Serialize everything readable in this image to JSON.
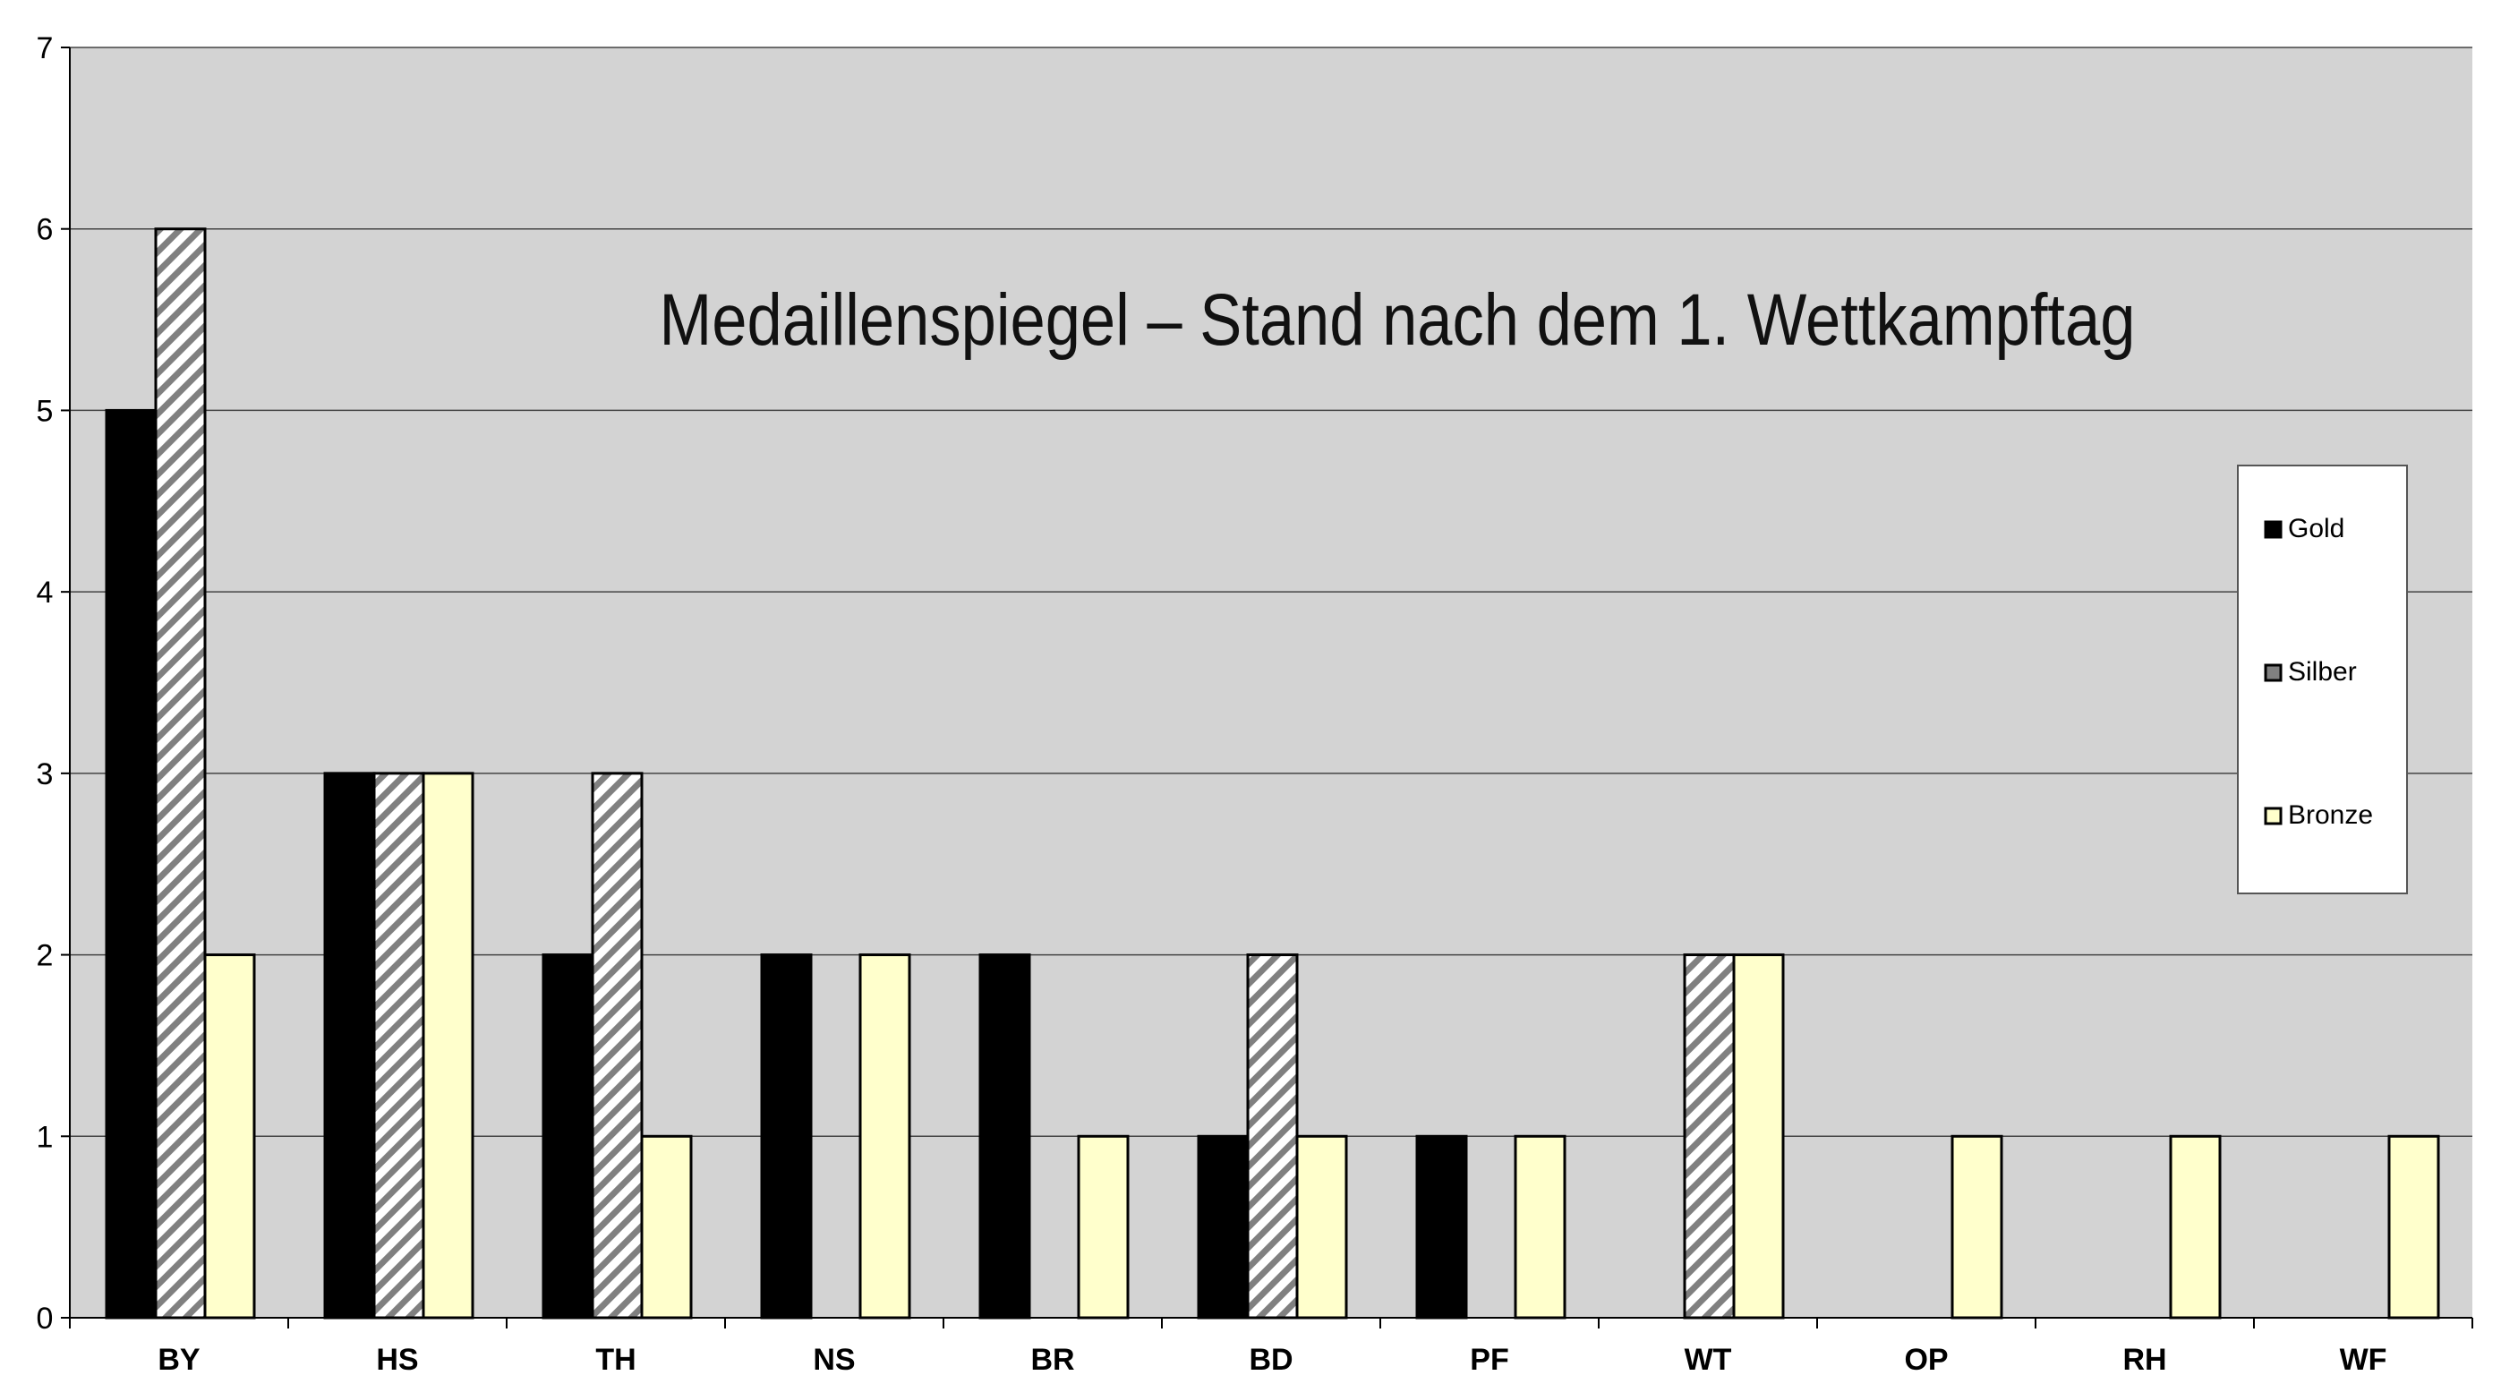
{
  "chart_data": {
    "type": "bar",
    "title": "Medaillenspiegel – Stand nach dem 1. Wettkampftag",
    "xlabel": "",
    "ylabel": "",
    "ylim": [
      0,
      7
    ],
    "yticks": [
      "0",
      "1",
      "2",
      "3",
      "4",
      "5",
      "6",
      "7"
    ],
    "grid": true,
    "legend_position": "right",
    "categories": [
      "BY",
      "HS",
      "TH",
      "NS",
      "BR",
      "BD",
      "PF",
      "WT",
      "OP",
      "RH",
      "WF"
    ],
    "series": [
      {
        "name": "Gold",
        "values": [
          5,
          3,
          2,
          2,
          2,
          1,
          1,
          0,
          0,
          0,
          0
        ],
        "color": "#000000",
        "pattern": "solid"
      },
      {
        "name": "Silber",
        "values": [
          6,
          3,
          3,
          0,
          0,
          2,
          0,
          2,
          0,
          0,
          0
        ],
        "color": "#808080",
        "pattern": "diagonal-hatch"
      },
      {
        "name": "Bronze",
        "values": [
          2,
          3,
          1,
          2,
          1,
          1,
          1,
          2,
          1,
          1,
          1
        ],
        "color": "#FFFFCC",
        "pattern": "solid"
      }
    ],
    "plot_background": "#D3D3D3"
  }
}
